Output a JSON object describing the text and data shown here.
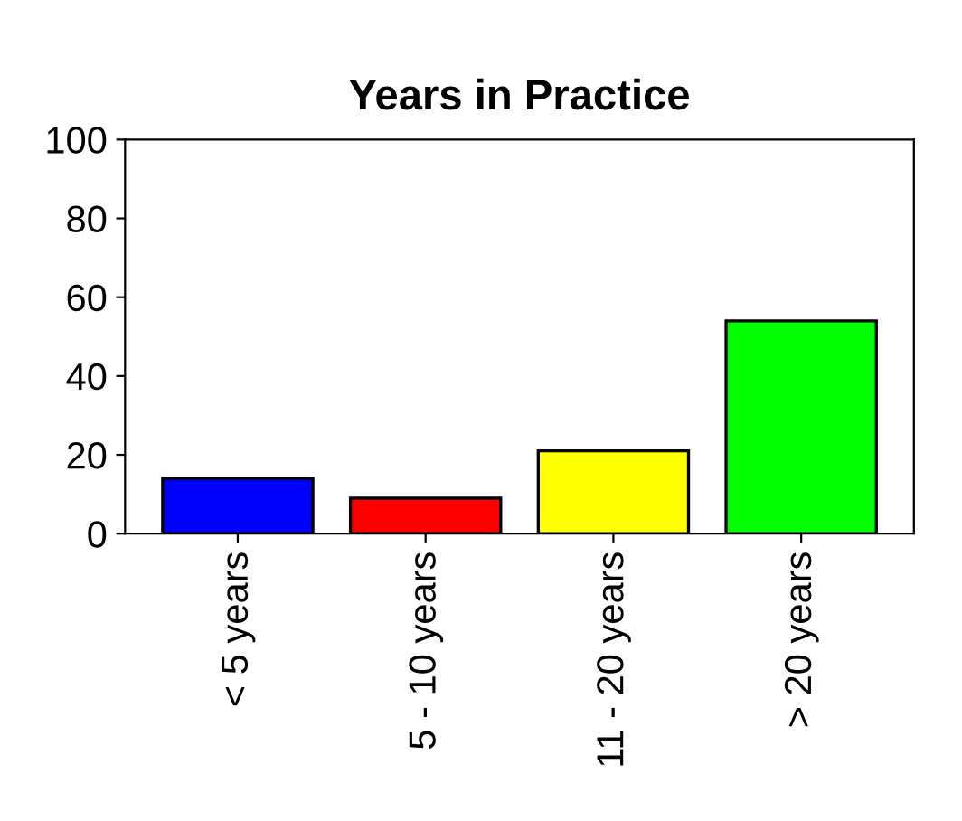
{
  "chart_data": {
    "type": "bar",
    "title": "Years in Practice",
    "categories": [
      "< 5 years",
      "5 - 10 years",
      "11 - 20 years",
      "> 20 years"
    ],
    "values": [
      14,
      9,
      21,
      54
    ],
    "colors": [
      "#0000ff",
      "#ff0000",
      "#ffff00",
      "#00ff00"
    ],
    "ylim": [
      0,
      100
    ],
    "yticks": [
      0,
      20,
      40,
      60,
      80,
      100
    ],
    "grid": false
  }
}
